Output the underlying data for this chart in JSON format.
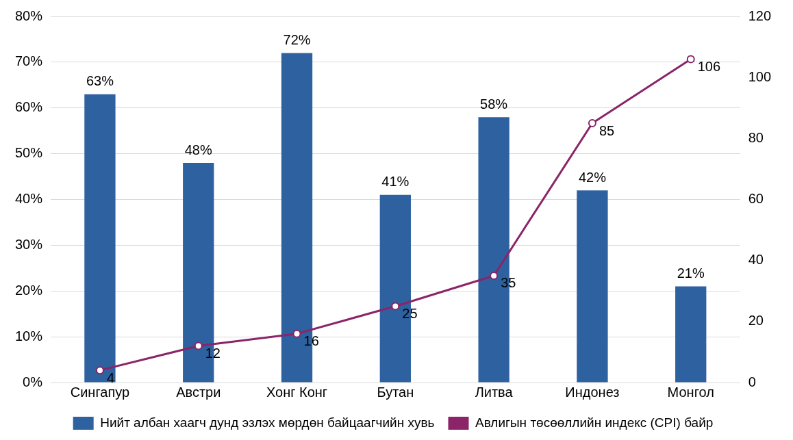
{
  "chart_data": {
    "type": "bar",
    "categories": [
      "Сингапур",
      "Австри",
      "Хонг Конг",
      "Бутан",
      "Литва",
      "Индонез",
      "Монгол"
    ],
    "series": [
      {
        "name": "Нийт албан хаагч дунд эзлэх мөрдөн байцаагчийн хувь",
        "color": "#2e61a0",
        "values": [
          63,
          48,
          72,
          41,
          58,
          42,
          21
        ],
        "value_labels": [
          "63%",
          "48%",
          "72%",
          "41%",
          "58%",
          "42%",
          "21%"
        ]
      },
      {
        "name": "Авлигын төсөөллийн индекс (CPI) байр",
        "type": "line",
        "axis": "y2",
        "color": "#8b2468",
        "marker": "circle",
        "values": [
          4,
          12,
          16,
          25,
          35,
          85,
          106
        ],
        "value_labels": [
          "4",
          "12",
          "16",
          "25",
          "35",
          "85",
          "106"
        ]
      }
    ],
    "ylim": [
      0,
      80
    ],
    "yticks": [
      {
        "value": 0,
        "label": "0%"
      },
      {
        "value": 10,
        "label": "10%"
      },
      {
        "value": 20,
        "label": "20%"
      },
      {
        "value": 30,
        "label": "30%"
      },
      {
        "value": 40,
        "label": "40%"
      },
      {
        "value": 50,
        "label": "50%"
      },
      {
        "value": 60,
        "label": "60%"
      },
      {
        "value": 70,
        "label": "70%"
      },
      {
        "value": 80,
        "label": "80%"
      }
    ],
    "y2lim": [
      0,
      120
    ],
    "y2ticks": [
      0,
      20,
      40,
      60,
      80,
      100,
      120
    ],
    "grid": "y",
    "legend": "bottom"
  }
}
